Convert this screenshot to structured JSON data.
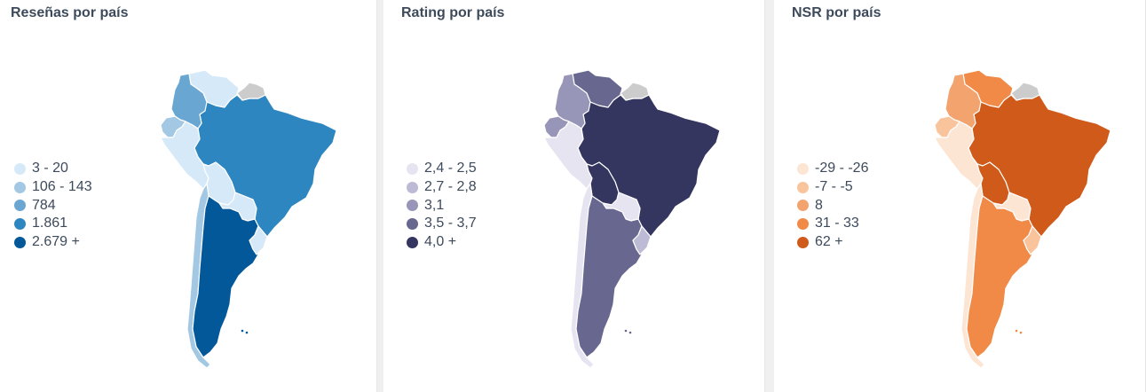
{
  "panels": [
    {
      "title": "Reseñas por país",
      "legend": [
        {
          "label": "3 - 20",
          "color": "#d6e9f8"
        },
        {
          "label": "106 - 143",
          "color": "#a3c8e4"
        },
        {
          "label": "784",
          "color": "#6aa6d2"
        },
        {
          "label": "1.861",
          "color": "#2e86c1"
        },
        {
          "label": "2.679 +",
          "color": "#03589a"
        }
      ],
      "countries": {
        "venezuela": "#d6e9f8",
        "colombia": "#6aa6d2",
        "ecuador": "#a3c8e4",
        "peru": "#d6e9f8",
        "brazil": "#2e86c1",
        "bolivia": "#d6e9f8",
        "paraguay": "#d6e9f8",
        "chile": "#a3c8e4",
        "argentina": "#03589a",
        "uruguay": "#d6e9f8",
        "guianas": "#cccccc"
      }
    },
    {
      "title": "Rating por país",
      "legend": [
        {
          "label": "2,4 - 2,5",
          "color": "#e6e4f0"
        },
        {
          "label": "2,7 - 2,8",
          "color": "#bcbad4"
        },
        {
          "label": "3,1",
          "color": "#9896b8"
        },
        {
          "label": "3,5 - 3,7",
          "color": "#67678f"
        },
        {
          "label": "4,0 +",
          "color": "#343660"
        }
      ],
      "countries": {
        "venezuela": "#67678f",
        "colombia": "#9896b8",
        "ecuador": "#9896b8",
        "peru": "#e6e4f0",
        "brazil": "#343660",
        "bolivia": "#343660",
        "paraguay": "#e6e4f0",
        "chile": "#e6e4f0",
        "argentina": "#67678f",
        "uruguay": "#bcbad4",
        "guianas": "#cccccc"
      }
    },
    {
      "title": "NSR por país",
      "legend": [
        {
          "label": "-29 - -26",
          "color": "#fde5d4"
        },
        {
          "label": "-7 - -5",
          "color": "#f9c49c"
        },
        {
          "label": "8",
          "color": "#f3a46e"
        },
        {
          "label": "31 - 33",
          "color": "#f08a46"
        },
        {
          "label": "62 +",
          "color": "#cf5a1a"
        }
      ],
      "countries": {
        "venezuela": "#f08a46",
        "colombia": "#f3a46e",
        "ecuador": "#f9c49c",
        "peru": "#fde5d4",
        "brazil": "#cf5a1a",
        "bolivia": "#cf5a1a",
        "paraguay": "#fde5d4",
        "chile": "#fde5d4",
        "argentina": "#f08a46",
        "uruguay": "#f9c49c",
        "guianas": "#cccccc"
      }
    }
  ]
}
